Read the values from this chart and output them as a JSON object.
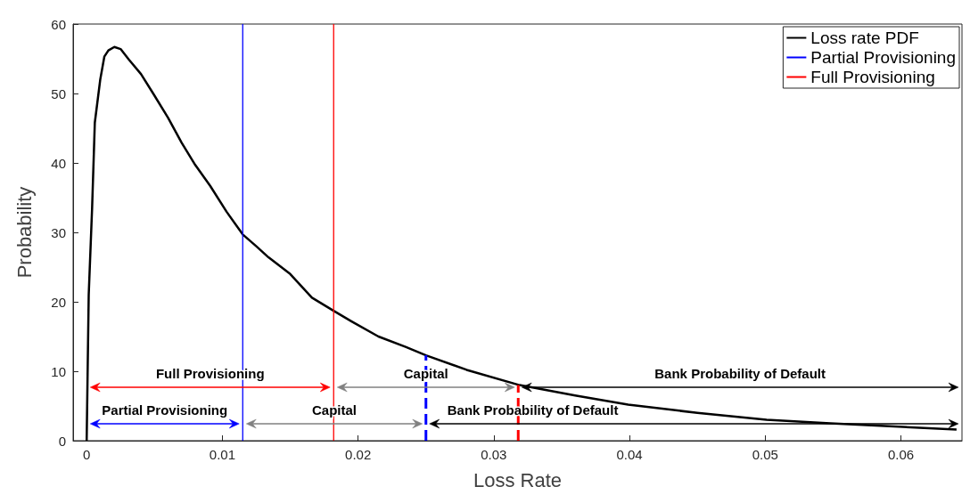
{
  "chart_data": {
    "type": "line",
    "xlabel": "Loss Rate",
    "ylabel": "Probability",
    "xlim": [
      -0.001,
      0.0645
    ],
    "ylim": [
      0,
      60
    ],
    "xticks": [
      0,
      0.01,
      0.02,
      0.03,
      0.04,
      0.05,
      0.06
    ],
    "yticks": [
      0,
      10,
      20,
      30,
      40,
      50,
      60
    ],
    "legend": "top right",
    "marker": "none",
    "series": [
      {
        "name": "Loss rate PDF",
        "color": "#000000",
        "x": [
          0,
          0.00015,
          0.0004,
          0.0006,
          0.001,
          0.0013,
          0.0016,
          0.00204,
          0.0025,
          0.0031,
          0.004,
          0.0049,
          0.006,
          0.007,
          0.008,
          0.0091,
          0.0103,
          0.0115,
          0.0125,
          0.0134,
          0.015,
          0.0166,
          0.0182,
          0.0195,
          0.0215,
          0.0235,
          0.025,
          0.028,
          0.0319,
          0.036,
          0.0399,
          0.045,
          0.0501,
          0.0548,
          0.0641
        ],
        "values": [
          0,
          21,
          33.5,
          45.8,
          52,
          55.3,
          56.2,
          56.7,
          56.4,
          54.9,
          52.8,
          50,
          46.5,
          42.9,
          39.7,
          36.7,
          33,
          29.7,
          28,
          26.4,
          24,
          20.6,
          18.7,
          17.2,
          15,
          13.5,
          12.3,
          10.2,
          8,
          6.5,
          5.2,
          4,
          3,
          2.5,
          1.6
        ]
      },
      {
        "name": "Partial Provisioning",
        "color": "#0000ff",
        "x": [
          0.0115,
          0.0115
        ],
        "values": [
          0,
          60
        ]
      },
      {
        "name": "Full Provisioning",
        "color": "#ff0000",
        "x": [
          0.0182,
          0.0182
        ],
        "values": [
          0,
          60
        ]
      },
      {
        "color": "#0000ff",
        "line_style": "dashed",
        "x": [
          0.025,
          0.025
        ],
        "values": [
          0,
          12.3
        ]
      },
      {
        "color": "#ff0000",
        "line_style": "dashed",
        "x": [
          0.0318,
          0.0318
        ],
        "values": [
          0,
          8
        ]
      }
    ],
    "annotations": [
      "Full Provisioning",
      "Partial Provisioning",
      "Capital",
      "Capital",
      "Bank Probability of Default",
      "Bank Probability of Default"
    ]
  }
}
